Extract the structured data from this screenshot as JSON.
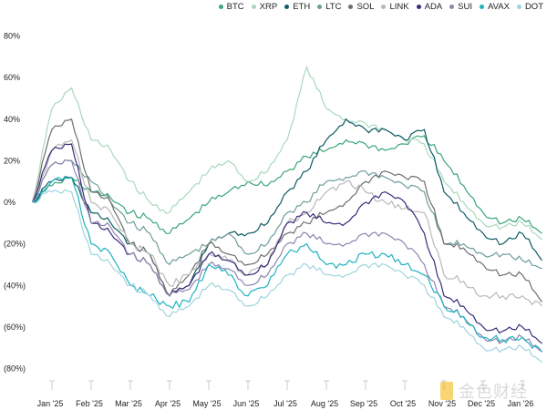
{
  "chart_data": {
    "type": "line",
    "title": "",
    "xlabel": "",
    "ylabel": "",
    "x_ticks": [
      "Jan '25",
      "Feb '25",
      "Mar '25",
      "Apr '25",
      "May '25",
      "Jun '25",
      "Jul '25",
      "Aug '25",
      "Sep '25",
      "Oct '25",
      "Nov '25",
      "Dec '25",
      "Jan '26"
    ],
    "x_unit": "month index (0 = Jan '25)",
    "x": [
      -0.5,
      0,
      0.5,
      1,
      1.5,
      2,
      2.5,
      3,
      3.5,
      4,
      4.5,
      5,
      5.5,
      6,
      6.5,
      7,
      7.5,
      8,
      8.5,
      9,
      9.5,
      10,
      10.5,
      11,
      11.5,
      12,
      12.5
    ],
    "y_ticks": [
      "80%",
      "60%",
      "40%",
      "20%",
      "0%",
      "(20%)",
      "(40%)",
      "(60%)",
      "(80%)"
    ],
    "y_tick_values": [
      80,
      60,
      40,
      20,
      0,
      -20,
      -40,
      -60,
      -80
    ],
    "ylim": [
      -80,
      80
    ],
    "legend_position": "top-right",
    "series": [
      {
        "name": "BTC",
        "color": "#3aa57a",
        "values": [
          0,
          8,
          12,
          5,
          2,
          -5,
          -8,
          -15,
          -8,
          0,
          5,
          10,
          8,
          15,
          22,
          25,
          30,
          28,
          25,
          28,
          32,
          20,
          8,
          -5,
          -10,
          -8,
          -15
        ]
      },
      {
        "name": "XRP",
        "color": "#a9d9bb",
        "values": [
          0,
          45,
          55,
          30,
          25,
          10,
          0,
          -5,
          5,
          15,
          20,
          10,
          15,
          30,
          65,
          45,
          40,
          38,
          35,
          30,
          28,
          10,
          0,
          -10,
          -12,
          -10,
          -18
        ]
      },
      {
        "name": "ETH",
        "color": "#0d5c63",
        "values": [
          0,
          10,
          12,
          -5,
          -10,
          -20,
          -25,
          -45,
          -40,
          -20,
          -15,
          -15,
          -10,
          5,
          15,
          30,
          40,
          35,
          35,
          30,
          35,
          5,
          -5,
          -15,
          -20,
          -15,
          -28
        ]
      },
      {
        "name": "LTC",
        "color": "#6f9c9c",
        "values": [
          0,
          18,
          20,
          10,
          0,
          -10,
          -15,
          -30,
          -25,
          -20,
          -15,
          -25,
          -20,
          -5,
          0,
          10,
          12,
          15,
          12,
          8,
          5,
          -20,
          -20,
          -25,
          -25,
          -28,
          -32
        ]
      },
      {
        "name": "SOL",
        "color": "#6e6e6e",
        "values": [
          0,
          35,
          40,
          5,
          0,
          -20,
          -25,
          -45,
          -35,
          -20,
          -25,
          -30,
          -25,
          -15,
          -10,
          -5,
          0,
          10,
          15,
          12,
          10,
          -20,
          -22,
          -30,
          -35,
          -35,
          -48
        ]
      },
      {
        "name": "LINK",
        "color": "#b8b8b8",
        "values": [
          0,
          25,
          30,
          0,
          -5,
          -20,
          -25,
          -40,
          -35,
          -25,
          -28,
          -35,
          -30,
          -10,
          -5,
          5,
          10,
          5,
          0,
          -3,
          -5,
          -35,
          -38,
          -45,
          -45,
          -45,
          -50
        ]
      },
      {
        "name": "ADA",
        "color": "#3b2a7a",
        "values": [
          0,
          25,
          28,
          -10,
          -15,
          -25,
          -30,
          -45,
          -40,
          -25,
          -28,
          -35,
          -30,
          -10,
          -5,
          -10,
          -10,
          0,
          5,
          0,
          -15,
          -45,
          -50,
          -60,
          -62,
          -60,
          -68
        ]
      },
      {
        "name": "SUI",
        "color": "#8c86b0",
        "values": [
          0,
          18,
          20,
          -10,
          -12,
          -25,
          -30,
          -45,
          -42,
          -30,
          -32,
          -40,
          -35,
          -20,
          -15,
          -20,
          -20,
          -15,
          -15,
          -20,
          -30,
          -50,
          -55,
          -65,
          -67,
          -65,
          -72
        ]
      },
      {
        "name": "AVAX",
        "color": "#1fb2c0",
        "values": [
          0,
          10,
          12,
          -20,
          -25,
          -40,
          -45,
          -50,
          -48,
          -30,
          -35,
          -45,
          -40,
          -25,
          -20,
          -30,
          -30,
          -25,
          -25,
          -30,
          -35,
          -50,
          -55,
          -65,
          -66,
          -65,
          -72
        ]
      },
      {
        "name": "DOT",
        "color": "#9fd4dd",
        "values": [
          0,
          5,
          5,
          -25,
          -30,
          -40,
          -45,
          -55,
          -50,
          -40,
          -42,
          -50,
          -45,
          -35,
          -30,
          -35,
          -35,
          -30,
          -30,
          -35,
          -40,
          -55,
          -60,
          -70,
          -71,
          -70,
          -77
        ]
      }
    ]
  },
  "watermark": "金色财经"
}
